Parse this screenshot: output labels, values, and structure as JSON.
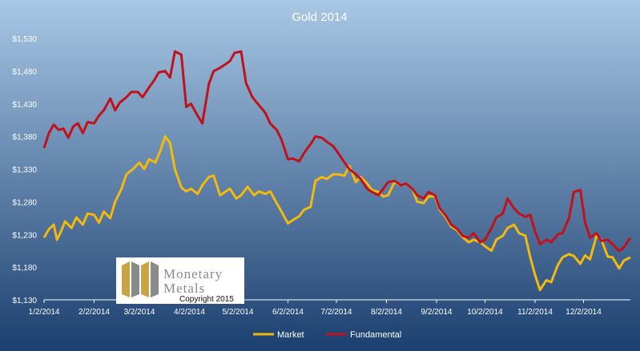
{
  "chart_data": {
    "type": "line",
    "title": "Gold 2014",
    "xlabel": "",
    "ylabel": "",
    "ylim": [
      1130,
      1530
    ],
    "y_ticks": [
      "$1,130",
      "$1,180",
      "$1,230",
      "$1,280",
      "$1,330",
      "$1,380",
      "$1,430",
      "$1,480",
      "$1,530"
    ],
    "y_tick_values": [
      1130,
      1180,
      1230,
      1280,
      1330,
      1380,
      1430,
      1480,
      1530
    ],
    "x_ticks": [
      "1/2/2014",
      "2/2/2014",
      "3/2/2014",
      "4/2/2014",
      "5/2/2014",
      "6/2/2014",
      "7/2/2014",
      "8/2/2014",
      "9/2/2014",
      "10/2/2014",
      "11/2/2014",
      "12/2/2014"
    ],
    "x_domain": [
      "2014-01-02",
      "2014-12-31"
    ],
    "grid": false,
    "legend_position": "bottom",
    "background_gradient": [
      "#a9c8e6",
      "#1b3f6f"
    ],
    "series": [
      {
        "name": "Market",
        "color": "#f2b90f",
        "points": [
          [
            "2014-01-02",
            1225
          ],
          [
            "2014-01-05",
            1238
          ],
          [
            "2014-01-08",
            1245
          ],
          [
            "2014-01-10",
            1222
          ],
          [
            "2014-01-12",
            1232
          ],
          [
            "2014-01-15",
            1250
          ],
          [
            "2014-01-19",
            1240
          ],
          [
            "2014-01-22",
            1256
          ],
          [
            "2014-01-26",
            1245
          ],
          [
            "2014-01-29",
            1262
          ],
          [
            "2014-02-02",
            1260
          ],
          [
            "2014-02-05",
            1248
          ],
          [
            "2014-02-08",
            1265
          ],
          [
            "2014-02-12",
            1255
          ],
          [
            "2014-02-15",
            1280
          ],
          [
            "2014-02-19",
            1300
          ],
          [
            "2014-02-22",
            1322
          ],
          [
            "2014-02-26",
            1330
          ],
          [
            "2014-03-02",
            1340
          ],
          [
            "2014-03-05",
            1330
          ],
          [
            "2014-03-08",
            1345
          ],
          [
            "2014-03-12",
            1340
          ],
          [
            "2014-03-15",
            1358
          ],
          [
            "2014-03-18",
            1380
          ],
          [
            "2014-03-21",
            1370
          ],
          [
            "2014-03-24",
            1330
          ],
          [
            "2014-03-28",
            1302
          ],
          [
            "2014-03-31",
            1296
          ],
          [
            "2014-04-03",
            1300
          ],
          [
            "2014-04-07",
            1292
          ],
          [
            "2014-04-10",
            1305
          ],
          [
            "2014-04-14",
            1318
          ],
          [
            "2014-04-17",
            1320
          ],
          [
            "2014-04-21",
            1290
          ],
          [
            "2014-04-24",
            1295
          ],
          [
            "2014-04-27",
            1300
          ],
          [
            "2014-05-01",
            1285
          ],
          [
            "2014-05-04",
            1290
          ],
          [
            "2014-05-08",
            1303
          ],
          [
            "2014-05-12",
            1290
          ],
          [
            "2014-05-15",
            1296
          ],
          [
            "2014-05-19",
            1292
          ],
          [
            "2014-05-22",
            1296
          ],
          [
            "2014-05-26",
            1278
          ],
          [
            "2014-05-29",
            1265
          ],
          [
            "2014-06-02",
            1247
          ],
          [
            "2014-06-05",
            1252
          ],
          [
            "2014-06-09",
            1258
          ],
          [
            "2014-06-12",
            1268
          ],
          [
            "2014-06-16",
            1272
          ],
          [
            "2014-06-19",
            1312
          ],
          [
            "2014-06-23",
            1318
          ],
          [
            "2014-06-26",
            1315
          ],
          [
            "2014-06-30",
            1322
          ],
          [
            "2014-07-03",
            1322
          ],
          [
            "2014-07-07",
            1320
          ],
          [
            "2014-07-10",
            1335
          ],
          [
            "2014-07-14",
            1310
          ],
          [
            "2014-07-17",
            1318
          ],
          [
            "2014-07-21",
            1308
          ],
          [
            "2014-07-24",
            1298
          ],
          [
            "2014-07-28",
            1295
          ],
          [
            "2014-07-31",
            1288
          ],
          [
            "2014-08-03",
            1290
          ],
          [
            "2014-08-07",
            1310
          ],
          [
            "2014-08-11",
            1305
          ],
          [
            "2014-08-14",
            1308
          ],
          [
            "2014-08-18",
            1300
          ],
          [
            "2014-08-21",
            1280
          ],
          [
            "2014-08-25",
            1278
          ],
          [
            "2014-08-28",
            1288
          ],
          [
            "2014-09-01",
            1288
          ],
          [
            "2014-09-04",
            1268
          ],
          [
            "2014-09-08",
            1255
          ],
          [
            "2014-09-11",
            1242
          ],
          [
            "2014-09-15",
            1236
          ],
          [
            "2014-09-18",
            1226
          ],
          [
            "2014-09-22",
            1218
          ],
          [
            "2014-09-25",
            1222
          ],
          [
            "2014-09-29",
            1218
          ],
          [
            "2014-10-02",
            1212
          ],
          [
            "2014-10-06",
            1205
          ],
          [
            "2014-10-09",
            1222
          ],
          [
            "2014-10-13",
            1228
          ],
          [
            "2014-10-16",
            1240
          ],
          [
            "2014-10-20",
            1245
          ],
          [
            "2014-10-23",
            1232
          ],
          [
            "2014-10-27",
            1228
          ],
          [
            "2014-10-30",
            1195
          ],
          [
            "2014-11-02",
            1168
          ],
          [
            "2014-11-05",
            1145
          ],
          [
            "2014-11-09",
            1160
          ],
          [
            "2014-11-12",
            1157
          ],
          [
            "2014-11-16",
            1183
          ],
          [
            "2014-11-19",
            1195
          ],
          [
            "2014-11-23",
            1200
          ],
          [
            "2014-11-26",
            1197
          ],
          [
            "2014-11-30",
            1185
          ],
          [
            "2014-12-03",
            1198
          ],
          [
            "2014-12-06",
            1192
          ],
          [
            "2014-12-10",
            1228
          ],
          [
            "2014-12-13",
            1222
          ],
          [
            "2014-12-17",
            1196
          ],
          [
            "2014-12-20",
            1195
          ],
          [
            "2014-12-24",
            1178
          ],
          [
            "2014-12-27",
            1190
          ],
          [
            "2014-12-31",
            1195
          ]
        ]
      },
      {
        "name": "Fundamental",
        "color": "#c0121a",
        "points": [
          [
            "2014-01-02",
            1362
          ],
          [
            "2014-01-05",
            1385
          ],
          [
            "2014-01-08",
            1398
          ],
          [
            "2014-01-11",
            1390
          ],
          [
            "2014-01-14",
            1392
          ],
          [
            "2014-01-17",
            1378
          ],
          [
            "2014-01-20",
            1395
          ],
          [
            "2014-01-23",
            1400
          ],
          [
            "2014-01-26",
            1385
          ],
          [
            "2014-01-29",
            1402
          ],
          [
            "2014-02-02",
            1400
          ],
          [
            "2014-02-05",
            1412
          ],
          [
            "2014-02-08",
            1420
          ],
          [
            "2014-02-12",
            1438
          ],
          [
            "2014-02-15",
            1420
          ],
          [
            "2014-02-18",
            1432
          ],
          [
            "2014-02-22",
            1440
          ],
          [
            "2014-02-25",
            1448
          ],
          [
            "2014-03-01",
            1448
          ],
          [
            "2014-03-04",
            1440
          ],
          [
            "2014-03-08",
            1455
          ],
          [
            "2014-03-11",
            1465
          ],
          [
            "2014-03-14",
            1478
          ],
          [
            "2014-03-18",
            1480
          ],
          [
            "2014-03-21",
            1470
          ],
          [
            "2014-03-24",
            1510
          ],
          [
            "2014-03-28",
            1505
          ],
          [
            "2014-03-31",
            1425
          ],
          [
            "2014-04-03",
            1430
          ],
          [
            "2014-04-07",
            1412
          ],
          [
            "2014-04-10",
            1400
          ],
          [
            "2014-04-14",
            1460
          ],
          [
            "2014-04-17",
            1480
          ],
          [
            "2014-04-21",
            1485
          ],
          [
            "2014-04-24",
            1490
          ],
          [
            "2014-04-27",
            1495
          ],
          [
            "2014-04-30",
            1508
          ],
          [
            "2014-05-04",
            1510
          ],
          [
            "2014-05-07",
            1462
          ],
          [
            "2014-05-11",
            1440
          ],
          [
            "2014-05-15",
            1428
          ],
          [
            "2014-05-19",
            1416
          ],
          [
            "2014-05-22",
            1400
          ],
          [
            "2014-05-26",
            1390
          ],
          [
            "2014-05-29",
            1375
          ],
          [
            "2014-06-02",
            1345
          ],
          [
            "2014-06-05",
            1346
          ],
          [
            "2014-06-09",
            1342
          ],
          [
            "2014-06-12",
            1355
          ],
          [
            "2014-06-16",
            1368
          ],
          [
            "2014-06-19",
            1380
          ],
          [
            "2014-06-23",
            1378
          ],
          [
            "2014-06-26",
            1372
          ],
          [
            "2014-06-30",
            1365
          ],
          [
            "2014-07-03",
            1355
          ],
          [
            "2014-07-07",
            1340
          ],
          [
            "2014-07-10",
            1330
          ],
          [
            "2014-07-14",
            1322
          ],
          [
            "2014-07-17",
            1315
          ],
          [
            "2014-07-21",
            1300
          ],
          [
            "2014-07-24",
            1295
          ],
          [
            "2014-07-28",
            1290
          ],
          [
            "2014-07-31",
            1300
          ],
          [
            "2014-08-03",
            1310
          ],
          [
            "2014-08-07",
            1312
          ],
          [
            "2014-08-11",
            1305
          ],
          [
            "2014-08-14",
            1308
          ],
          [
            "2014-08-18",
            1300
          ],
          [
            "2014-08-21",
            1290
          ],
          [
            "2014-08-25",
            1285
          ],
          [
            "2014-08-28",
            1295
          ],
          [
            "2014-09-01",
            1290
          ],
          [
            "2014-09-04",
            1270
          ],
          [
            "2014-09-08",
            1258
          ],
          [
            "2014-09-11",
            1245
          ],
          [
            "2014-09-15",
            1238
          ],
          [
            "2014-09-18",
            1228
          ],
          [
            "2014-09-22",
            1225
          ],
          [
            "2014-09-25",
            1232
          ],
          [
            "2014-09-29",
            1218
          ],
          [
            "2014-10-02",
            1222
          ],
          [
            "2014-10-06",
            1240
          ],
          [
            "2014-10-09",
            1256
          ],
          [
            "2014-10-13",
            1262
          ],
          [
            "2014-10-16",
            1285
          ],
          [
            "2014-10-20",
            1270
          ],
          [
            "2014-10-23",
            1262
          ],
          [
            "2014-10-27",
            1257
          ],
          [
            "2014-10-30",
            1260
          ],
          [
            "2014-11-02",
            1235
          ],
          [
            "2014-11-05",
            1215
          ],
          [
            "2014-11-09",
            1222
          ],
          [
            "2014-11-12",
            1218
          ],
          [
            "2014-11-16",
            1230
          ],
          [
            "2014-11-19",
            1232
          ],
          [
            "2014-11-23",
            1255
          ],
          [
            "2014-11-26",
            1295
          ],
          [
            "2014-11-30",
            1298
          ],
          [
            "2014-12-03",
            1248
          ],
          [
            "2014-12-06",
            1225
          ],
          [
            "2014-12-10",
            1232
          ],
          [
            "2014-12-13",
            1220
          ],
          [
            "2014-12-17",
            1222
          ],
          [
            "2014-12-20",
            1215
          ],
          [
            "2014-12-24",
            1205
          ],
          [
            "2014-12-27",
            1210
          ],
          [
            "2014-12-31",
            1225
          ]
        ]
      }
    ]
  },
  "watermark": {
    "name_line1": "Monetary",
    "name_line2": "Metals",
    "copyright": "Copyright 2015",
    "gold_color": "#c9a443",
    "grey_color": "#8a8a8a"
  }
}
